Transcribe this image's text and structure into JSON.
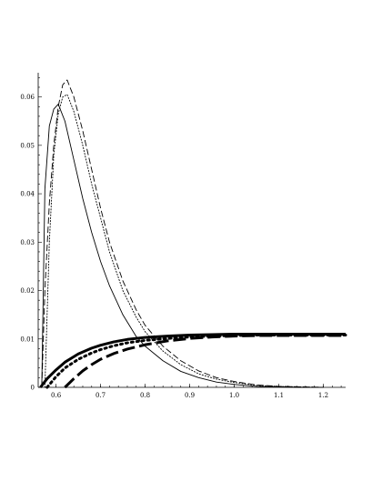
{
  "chart_data": {
    "type": "line",
    "title": "",
    "xlabel": "",
    "ylabel": "",
    "xlim": [
      0.56,
      1.25
    ],
    "ylim": [
      0,
      0.065
    ],
    "grid": false,
    "legend": "none",
    "x_ticks": [
      "0.6",
      "0.7",
      "0.8",
      "0.9",
      "1.0",
      "1.1",
      "1.2"
    ],
    "y_ticks": [
      "0",
      "0.01",
      "0.02",
      "0.03",
      "0.04",
      "0.05",
      "0.06"
    ],
    "series": [
      {
        "style": "solid",
        "weight": "thin",
        "x": [
          0.568,
          0.575,
          0.585,
          0.595,
          0.605,
          0.62,
          0.64,
          0.66,
          0.68,
          0.7,
          0.72,
          0.75,
          0.78,
          0.8,
          0.84,
          0.88,
          0.92,
          0.96,
          1.0,
          1.05,
          1.1,
          1.15,
          1.2
        ],
        "y": [
          0.0,
          0.041,
          0.054,
          0.0575,
          0.0585,
          0.055,
          0.047,
          0.039,
          0.032,
          0.026,
          0.021,
          0.015,
          0.0105,
          0.0085,
          0.0055,
          0.0033,
          0.002,
          0.0011,
          0.0006,
          0.0002,
          0.0001,
          0.0,
          0.0
        ]
      },
      {
        "style": "dotted",
        "weight": "thin",
        "x": [
          0.575,
          0.585,
          0.595,
          0.605,
          0.615,
          0.625,
          0.64,
          0.66,
          0.68,
          0.7,
          0.72,
          0.75,
          0.78,
          0.8,
          0.84,
          0.88,
          0.92,
          0.96,
          1.0,
          1.05,
          1.1,
          1.15,
          1.2
        ],
        "y": [
          0.0,
          0.03,
          0.048,
          0.0565,
          0.06,
          0.0605,
          0.057,
          0.05,
          0.042,
          0.035,
          0.028,
          0.02,
          0.0145,
          0.0115,
          0.0075,
          0.0047,
          0.0028,
          0.0017,
          0.001,
          0.0004,
          0.0002,
          0.0001,
          0.0
        ]
      },
      {
        "style": "dashed",
        "weight": "thin",
        "x": [
          0.568,
          0.575,
          0.585,
          0.595,
          0.605,
          0.615,
          0.625,
          0.64,
          0.66,
          0.68,
          0.7,
          0.72,
          0.75,
          0.78,
          0.8,
          0.84,
          0.88,
          0.92,
          0.96,
          1.0,
          1.05,
          1.1,
          1.15,
          1.2
        ],
        "y": [
          0.0,
          0.02,
          0.038,
          0.05,
          0.058,
          0.0625,
          0.0635,
          0.06,
          0.053,
          0.045,
          0.037,
          0.03,
          0.022,
          0.016,
          0.0128,
          0.0085,
          0.0055,
          0.0034,
          0.002,
          0.0012,
          0.0005,
          0.0002,
          0.0001,
          0.0
        ]
      },
      {
        "style": "solid",
        "weight": "thick",
        "x": [
          0.565,
          0.58,
          0.6,
          0.62,
          0.65,
          0.68,
          0.7,
          0.73,
          0.76,
          0.8,
          0.85,
          0.9,
          0.95,
          1.0,
          1.05,
          1.1,
          1.15,
          1.2,
          1.25
        ],
        "y": [
          0.0,
          0.0018,
          0.0036,
          0.0052,
          0.0069,
          0.0081,
          0.0087,
          0.0094,
          0.0099,
          0.0103,
          0.0106,
          0.0108,
          0.0109,
          0.011,
          0.011,
          0.011,
          0.011,
          0.011,
          0.011
        ]
      },
      {
        "style": "dotted",
        "weight": "thick",
        "x": [
          0.58,
          0.6,
          0.62,
          0.65,
          0.68,
          0.7,
          0.73,
          0.76,
          0.8,
          0.85,
          0.9,
          0.95,
          1.0,
          1.05,
          1.1,
          1.15,
          1.2,
          1.25
        ],
        "y": [
          0.0,
          0.0022,
          0.004,
          0.0058,
          0.0071,
          0.0078,
          0.0086,
          0.0092,
          0.0097,
          0.0101,
          0.0104,
          0.0106,
          0.0107,
          0.0108,
          0.0108,
          0.0108,
          0.0108,
          0.0108
        ]
      },
      {
        "style": "dashed",
        "weight": "thick",
        "x": [
          0.62,
          0.64,
          0.66,
          0.68,
          0.7,
          0.73,
          0.76,
          0.8,
          0.85,
          0.9,
          0.95,
          1.0,
          1.05,
          1.1,
          1.15,
          1.2,
          1.25
        ],
        "y": [
          0.0,
          0.0018,
          0.0034,
          0.0047,
          0.0058,
          0.007,
          0.0079,
          0.0088,
          0.0096,
          0.0101,
          0.0104,
          0.0106,
          0.0107,
          0.0107,
          0.0107,
          0.0107,
          0.0107
        ]
      }
    ]
  }
}
